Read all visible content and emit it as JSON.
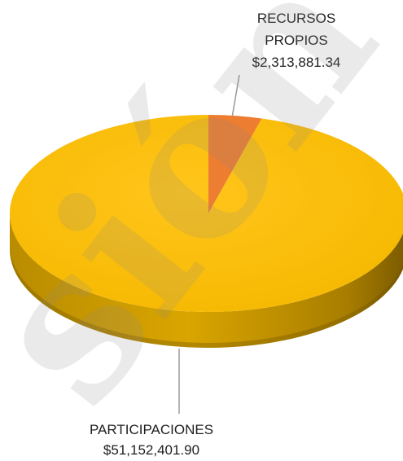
{
  "chart_data": {
    "type": "pie",
    "style": "3d",
    "title": "",
    "slices": [
      {
        "label_line1": "RECURSOS",
        "label_line2": "PROPIOS",
        "value_label": "$2,313,881.34",
        "value": 2313881.34,
        "color": "#ED7D31"
      },
      {
        "label_line1": "PARTICIPACIONES",
        "label_line2": "",
        "value_label": "$51,152,401.90",
        "value": 51152401.9,
        "color": "#FFC000"
      }
    ]
  },
  "watermark": {
    "text": "sión"
  }
}
